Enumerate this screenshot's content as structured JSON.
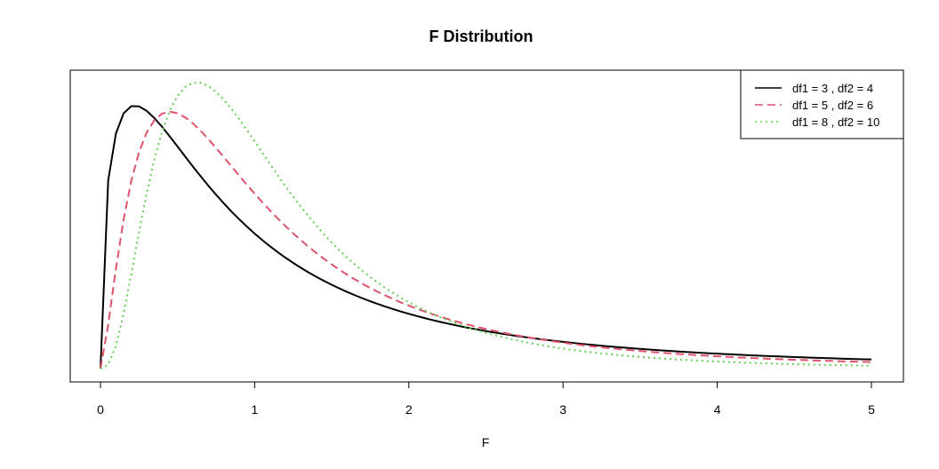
{
  "chart_data": {
    "type": "line",
    "title": "F Distribution",
    "xlabel": "F",
    "ylabel": "",
    "xlim": [
      0,
      5
    ],
    "ylim": [
      0,
      0.73
    ],
    "x_ticks": [
      "0",
      "1",
      "2",
      "3",
      "4",
      "5"
    ],
    "grid": false,
    "legend_position": "top-right",
    "series": [
      {
        "name": "df1 = 3 , df2 = 4",
        "df1": 3,
        "df2": 4,
        "color": "#000000",
        "dash": "solid"
      },
      {
        "name": "df1 = 5 , df2 = 6",
        "df1": 5,
        "df2": 6,
        "color": "#DF536B",
        "dash": "dashed"
      },
      {
        "name": "df1 = 8 , df2 = 10",
        "df1": 8,
        "df2": 10,
        "color": "#61D04F",
        "dash": "dotted"
      }
    ]
  }
}
